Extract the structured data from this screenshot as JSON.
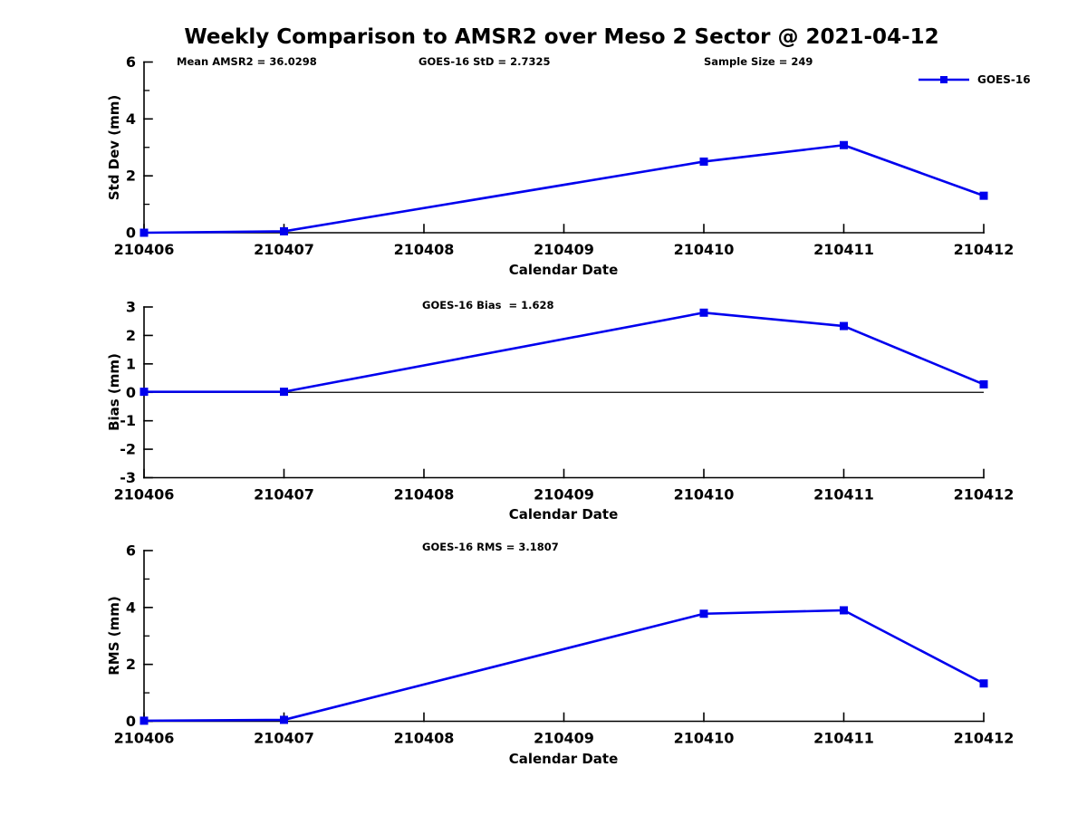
{
  "figure_title": "Weekly Comparison to AMSR2 over Meso 2 Sector @ 2021-04-12",
  "legend": {
    "label": "GOES-16",
    "color": "#0000EE"
  },
  "chart_data": [
    {
      "type": "line",
      "ylabel": "Std Dev (mm)",
      "xlabel": "Calendar Date",
      "categories": [
        "210406",
        "210407",
        "210408",
        "210409",
        "210410",
        "210411",
        "210412"
      ],
      "ylim": [
        0,
        6
      ],
      "yticks": [
        0,
        2,
        4,
        6
      ],
      "minor_yticks": [
        1,
        3,
        5
      ],
      "zero_line": false,
      "grid": false,
      "legend_position": "top-right",
      "annotations": [
        {
          "text": "Mean AMSR2 = 36.0298"
        },
        {
          "text": "GOES-16 StD = 2.7325"
        },
        {
          "text": "Sample Size = 249"
        }
      ],
      "series": [
        {
          "name": "GOES-16",
          "color": "#0000EE",
          "marker": "square",
          "points": [
            {
              "x": "210406",
              "y": 0.0
            },
            {
              "x": "210407",
              "y": 0.05
            },
            {
              "x": "210410",
              "y": 2.5
            },
            {
              "x": "210411",
              "y": 3.08
            },
            {
              "x": "210412",
              "y": 1.3
            }
          ]
        }
      ]
    },
    {
      "type": "line",
      "ylabel": "Bias (mm)",
      "xlabel": "Calendar Date",
      "categories": [
        "210406",
        "210407",
        "210408",
        "210409",
        "210410",
        "210411",
        "210412"
      ],
      "ylim": [
        -3,
        3
      ],
      "yticks": [
        -3,
        -2,
        -1,
        0,
        1,
        2,
        3
      ],
      "minor_yticks": [],
      "zero_line": true,
      "grid": false,
      "annotations": [
        {
          "text": "GOES-16 Bias  = 1.628"
        }
      ],
      "series": [
        {
          "name": "GOES-16",
          "color": "#0000EE",
          "marker": "square",
          "points": [
            {
              "x": "210406",
              "y": 0.02
            },
            {
              "x": "210407",
              "y": 0.02
            },
            {
              "x": "210410",
              "y": 2.8
            },
            {
              "x": "210411",
              "y": 2.33
            },
            {
              "x": "210412",
              "y": 0.28
            }
          ]
        }
      ]
    },
    {
      "type": "line",
      "ylabel": "RMS (mm)",
      "xlabel": "Calendar Date",
      "categories": [
        "210406",
        "210407",
        "210408",
        "210409",
        "210410",
        "210411",
        "210412"
      ],
      "ylim": [
        0,
        6
      ],
      "yticks": [
        0,
        2,
        4,
        6
      ],
      "minor_yticks": [
        1,
        3,
        5
      ],
      "zero_line": false,
      "grid": false,
      "annotations": [
        {
          "text": "GOES-16 RMS = 3.1807"
        }
      ],
      "series": [
        {
          "name": "GOES-16",
          "color": "#0000EE",
          "marker": "square",
          "points": [
            {
              "x": "210406",
              "y": 0.02
            },
            {
              "x": "210407",
              "y": 0.05
            },
            {
              "x": "210410",
              "y": 3.78
            },
            {
              "x": "210411",
              "y": 3.9
            },
            {
              "x": "210412",
              "y": 1.33
            }
          ]
        }
      ]
    }
  ]
}
